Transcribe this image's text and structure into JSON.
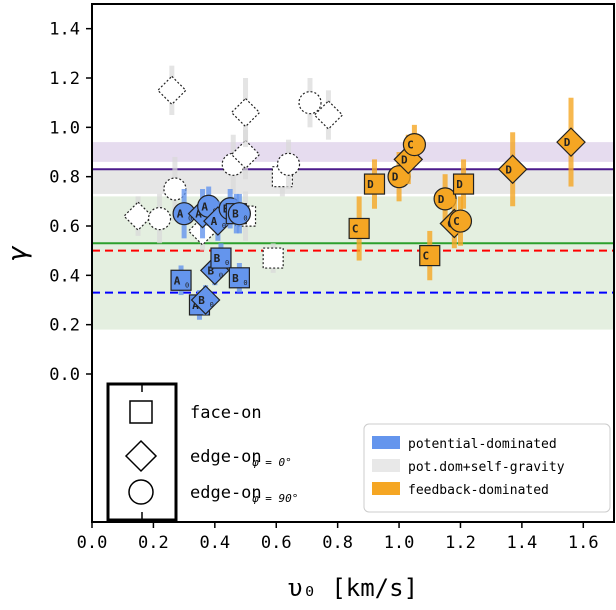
{
  "chart_data": {
    "type": "scatter",
    "xlabel": "υ₀  [km/s]",
    "ylabel": "γ",
    "xlim": [
      0.0,
      1.7
    ],
    "ylim": [
      -0.6,
      1.5
    ],
    "x_ticks": [
      "0.0",
      "0.2",
      "0.4",
      "0.6",
      "0.8",
      "1.0",
      "1.2",
      "1.4",
      "1.6"
    ],
    "y_ticks": [
      "0.0",
      "0.2",
      "0.4",
      "0.6",
      "0.8",
      "1.0",
      "1.2",
      "1.4"
    ],
    "bands": [
      {
        "ymin": 0.86,
        "ymax": 0.94,
        "color": "#e6dcef"
      },
      {
        "ymin": 0.73,
        "ymax": 0.83,
        "color": "#e6e6e6"
      },
      {
        "ymin": 0.18,
        "ymax": 0.72,
        "color": "#e4efe0"
      }
    ],
    "hlines": [
      {
        "y": 0.83,
        "color": "#4b1a8c",
        "style": "solid"
      },
      {
        "y": 0.53,
        "color": "#2ca02c",
        "style": "solid"
      },
      {
        "y": 0.5,
        "color": "#ff0000",
        "style": "dashed"
      },
      {
        "y": 0.33,
        "color": "#0000ff",
        "style": "dashed"
      }
    ],
    "colors": {
      "potential": "#6495ed",
      "selfgrav": "#e8e8e8",
      "feedback": "#f5a623"
    },
    "legend_markers": {
      "items": [
        {
          "shape": "square",
          "label": "face-on",
          "sub": ""
        },
        {
          "shape": "diamond",
          "label": "edge-on",
          "sub": "φ = 0°"
        },
        {
          "shape": "circle",
          "label": "edge-on",
          "sub": "φ = 90°"
        }
      ]
    },
    "legend_colors": {
      "placement": "lower-right",
      "items": [
        {
          "label": "potential-dominated",
          "color": "#6495ed"
        },
        {
          "label": "pot.dom+self-gravity",
          "color": "#e8e8e8"
        },
        {
          "label": "feedback-dominated",
          "color": "#f5a623"
        }
      ]
    },
    "points": [
      {
        "x": 0.15,
        "y": 0.64,
        "shape": "diamond",
        "group": "selfgrav",
        "label": "",
        "yerr": 0.08
      },
      {
        "x": 0.22,
        "y": 0.63,
        "shape": "circle",
        "group": "selfgrav",
        "label": "",
        "yerr": 0.1
      },
      {
        "x": 0.26,
        "y": 1.15,
        "shape": "diamond",
        "group": "selfgrav",
        "label": "",
        "yerr": 0.1
      },
      {
        "x": 0.27,
        "y": 0.75,
        "shape": "circle",
        "group": "selfgrav",
        "label": "",
        "yerr": 0.13
      },
      {
        "x": 0.36,
        "y": 0.58,
        "shape": "diamond",
        "group": "selfgrav",
        "label": "",
        "yerr": 0.08
      },
      {
        "x": 0.46,
        "y": 0.85,
        "shape": "circle",
        "group": "selfgrav",
        "label": "",
        "yerr": 0.12
      },
      {
        "x": 0.5,
        "y": 0.89,
        "shape": "diamond",
        "group": "selfgrav",
        "label": "",
        "yerr": 0.1
      },
      {
        "x": 0.5,
        "y": 1.06,
        "shape": "diamond",
        "group": "selfgrav",
        "label": "",
        "yerr": 0.14
      },
      {
        "x": 0.5,
        "y": 0.64,
        "shape": "square",
        "group": "selfgrav",
        "label": "",
        "yerr": 0.1
      },
      {
        "x": 0.59,
        "y": 0.47,
        "shape": "square",
        "group": "selfgrav",
        "label": "",
        "yerr": 0.06
      },
      {
        "x": 0.62,
        "y": 0.8,
        "shape": "square",
        "group": "selfgrav",
        "label": "",
        "yerr": 0.08
      },
      {
        "x": 0.64,
        "y": 0.85,
        "shape": "circle",
        "group": "selfgrav",
        "label": "",
        "yerr": 0.1
      },
      {
        "x": 0.71,
        "y": 1.1,
        "shape": "circle",
        "group": "selfgrav",
        "label": "",
        "yerr": 0.1
      },
      {
        "x": 0.77,
        "y": 1.05,
        "shape": "diamond",
        "group": "selfgrav",
        "label": "",
        "yerr": 0.1
      },
      {
        "x": 0.29,
        "y": 0.38,
        "shape": "square",
        "group": "potential",
        "label": "A",
        "yerr": 0.06
      },
      {
        "x": 0.3,
        "y": 0.65,
        "shape": "circle",
        "group": "potential",
        "label": "A",
        "yerr": 0.1
      },
      {
        "x": 0.35,
        "y": 0.28,
        "shape": "square",
        "group": "potential",
        "label": "A",
        "yerr": 0.06
      },
      {
        "x": 0.36,
        "y": 0.65,
        "shape": "diamond",
        "group": "potential",
        "label": "A",
        "yerr": 0.1
      },
      {
        "x": 0.37,
        "y": 0.3,
        "shape": "diamond",
        "group": "potential",
        "label": "B",
        "yerr": 0.06
      },
      {
        "x": 0.38,
        "y": 0.68,
        "shape": "circle",
        "group": "potential",
        "label": "A",
        "yerr": 0.08
      },
      {
        "x": 0.4,
        "y": 0.42,
        "shape": "diamond",
        "group": "potential",
        "label": "B",
        "yerr": 0.06
      },
      {
        "x": 0.41,
        "y": 0.62,
        "shape": "diamond",
        "group": "potential",
        "label": "A",
        "yerr": 0.08
      },
      {
        "x": 0.42,
        "y": 0.47,
        "shape": "square",
        "group": "potential",
        "label": "B",
        "yerr": 0.06
      },
      {
        "x": 0.45,
        "y": 0.67,
        "shape": "circle",
        "group": "potential",
        "label": "B",
        "yerr": 0.08
      },
      {
        "x": 0.47,
        "y": 0.65,
        "shape": "square",
        "group": "potential",
        "label": "B",
        "yerr": 0.08
      },
      {
        "x": 0.48,
        "y": 0.65,
        "shape": "circle",
        "group": "potential",
        "label": "B",
        "yerr": 0.08
      },
      {
        "x": 0.48,
        "y": 0.39,
        "shape": "square",
        "group": "potential",
        "label": "B",
        "yerr": 0.06
      },
      {
        "x": 0.87,
        "y": 0.59,
        "shape": "square",
        "group": "feedback",
        "label": "C",
        "yerr": 0.13
      },
      {
        "x": 0.92,
        "y": 0.77,
        "shape": "square",
        "group": "feedback",
        "label": "D",
        "yerr": 0.1
      },
      {
        "x": 1.0,
        "y": 0.8,
        "shape": "circle",
        "group": "feedback",
        "label": "D",
        "yerr": 0.1
      },
      {
        "x": 1.03,
        "y": 0.87,
        "shape": "diamond",
        "group": "feedback",
        "label": "D",
        "yerr": 0.1
      },
      {
        "x": 1.05,
        "y": 0.93,
        "shape": "circle",
        "group": "feedback",
        "label": "C",
        "yerr": 0.08
      },
      {
        "x": 1.1,
        "y": 0.48,
        "shape": "square",
        "group": "feedback",
        "label": "C",
        "yerr": 0.1
      },
      {
        "x": 1.15,
        "y": 0.71,
        "shape": "circle",
        "group": "feedback",
        "label": "D",
        "yerr": 0.1
      },
      {
        "x": 1.18,
        "y": 0.61,
        "shape": "diamond",
        "group": "feedback",
        "label": "C",
        "yerr": 0.1
      },
      {
        "x": 1.2,
        "y": 0.62,
        "shape": "circle",
        "group": "feedback",
        "label": "C",
        "yerr": 0.1
      },
      {
        "x": 1.21,
        "y": 0.77,
        "shape": "square",
        "group": "feedback",
        "label": "D",
        "yerr": 0.1
      },
      {
        "x": 1.37,
        "y": 0.83,
        "shape": "diamond",
        "group": "feedback",
        "label": "D",
        "yerr": 0.15
      },
      {
        "x": 1.56,
        "y": 0.94,
        "shape": "diamond",
        "group": "feedback",
        "label": "D",
        "yerr": 0.18
      }
    ]
  }
}
